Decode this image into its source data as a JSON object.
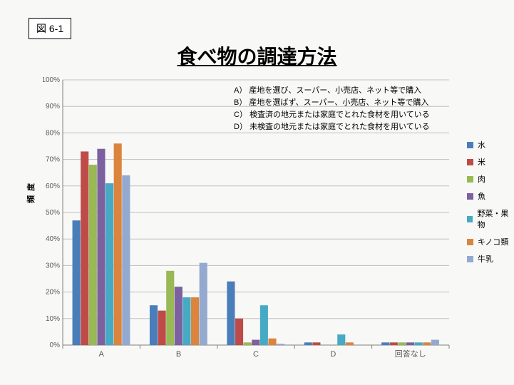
{
  "figure_label": "図 6-1",
  "title": "食べ物の調達方法",
  "y_axis_label": "頻度",
  "chart": {
    "type": "bar",
    "ylim": [
      0,
      100
    ],
    "ytick_step": 10,
    "ytick_suffix": "%",
    "background_color": "#f8f8f6",
    "plot_bg": "#f8f8f6",
    "grid_color": "#bfbfbf",
    "axis_color": "#808080",
    "bar_group_gap": 0.25,
    "categories": [
      "A",
      "B",
      "C",
      "D",
      "回答なし"
    ],
    "series": [
      {
        "name": "水",
        "color": "#4a7ebb",
        "values": [
          47,
          15,
          24,
          1,
          1
        ]
      },
      {
        "name": "米",
        "color": "#be4b48",
        "values": [
          73,
          13,
          10,
          1,
          1
        ]
      },
      {
        "name": "肉",
        "color": "#98b954",
        "values": [
          68,
          28,
          1,
          0,
          1
        ]
      },
      {
        "name": "魚",
        "color": "#7d60a0",
        "values": [
          74,
          22,
          2,
          0,
          1
        ]
      },
      {
        "name": "野菜・果物",
        "color": "#46aac5",
        "values": [
          61,
          18,
          15,
          4,
          1
        ]
      },
      {
        "name": "キノコ類",
        "color": "#db843d",
        "values": [
          76,
          18,
          2.5,
          1,
          1
        ]
      },
      {
        "name": "牛乳",
        "color": "#93a9cf",
        "values": [
          64,
          31,
          0.5,
          0,
          2
        ]
      }
    ]
  },
  "annotations": [
    {
      "key": "A）",
      "text": "産地を選び、スーパー、小売店、ネット等で購入"
    },
    {
      "key": "B）",
      "text": "産地を選ばず、スーパー、小売店、ネット等で購入"
    },
    {
      "key": "C）",
      "text": "検査済の地元または家庭でとれた食材を用いている"
    },
    {
      "key": "D）",
      "text": "未検査の地元または家庭でとれた食材を用いている"
    }
  ]
}
